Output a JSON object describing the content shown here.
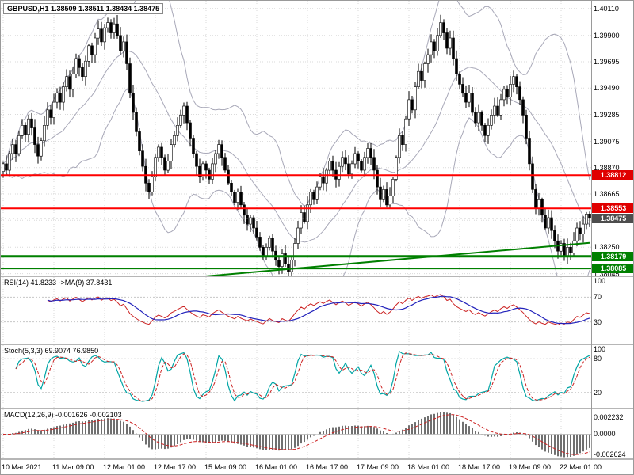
{
  "header": {
    "symbol": "GBPUSD,H1",
    "ohlc": "1.38509 1.38511 1.38434 1.38475"
  },
  "main_chart": {
    "price_max": 1.4017,
    "price_min": 1.3803,
    "y_axis_labels": [
      "1.40110",
      "1.39900",
      "1.39695",
      "1.39490",
      "1.39285",
      "1.39075",
      "1.38870",
      "1.38665",
      "1.38250",
      "1.38045"
    ],
    "grid_extra_levels": [
      1.3846
    ],
    "lines": [
      {
        "price": 1.38812,
        "color": "#FF0000",
        "width": 2
      },
      {
        "price": 1.38553,
        "color": "#FF0000",
        "width": 2
      },
      {
        "price": 1.38179,
        "color": "#008000",
        "width": 3
      },
      {
        "price": 1.38085,
        "color": "#008000",
        "width": 2
      }
    ],
    "trendline": {
      "bar1": 62,
      "price1": 1.3802,
      "bar2": 185,
      "price2": 1.38285,
      "color": "#008000"
    },
    "current_price": {
      "price": 1.38475
    },
    "price_badges": [
      {
        "text": "1.38812",
        "price": 1.38812,
        "bg": "#E00000"
      },
      {
        "text": "1.38553",
        "price": 1.38553,
        "bg": "#E00000"
      },
      {
        "text": "1.38475",
        "price": 1.38475,
        "bg": "#4D4D4D"
      },
      {
        "text": "1.38179",
        "price": 1.38179,
        "bg": "#008000"
      },
      {
        "text": "1.38085",
        "price": 1.38085,
        "bg": "#008000"
      }
    ]
  },
  "rsi_panel": {
    "label": "RSI(14) 41.8233 ->MA(9) 37.8431",
    "axis_labels": [
      "100",
      "70",
      "30"
    ],
    "levels": [
      70,
      30
    ],
    "line_color": "#CC2222",
    "ma_color": "#2222BB"
  },
  "stoch_panel": {
    "label": "Stoch(5,3,3) 69.9074 76.9850",
    "axis_labels": [
      "100",
      "80",
      "20"
    ],
    "levels": [
      80,
      20
    ],
    "k_color": "#00A5A5",
    "d_color": "#CC2222"
  },
  "macd_panel": {
    "label": "MACD(12,26,9) -0.001626 -0.002103",
    "axis_labels": [
      "0.002232",
      "0.0000",
      "-0.002624"
    ],
    "vmax": 0.00325,
    "vmin": -0.00315,
    "hist_color": "#606060",
    "signal_color": "#CC2222"
  },
  "x_axis": {
    "bars_per_label": 16,
    "labels": [
      "10 Mar 2021",
      "11 Mar 09:00",
      "12 Mar 01:00",
      "12 Mar 17:00",
      "15 Mar 09:00",
      "16 Mar 01:00",
      "16 Mar 17:00",
      "17 Mar 09:00",
      "18 Mar 01:00",
      "18 Mar 17:00",
      "19 Mar 09:00",
      "22 Mar 01:00"
    ],
    "start_label": "10 Mar 2021",
    "end_label": "22 Mar 01:00"
  },
  "chart_data": {
    "type": "candlestick",
    "symbol": "GBPUSD",
    "timeframe": "H1",
    "title": "GBPUSD,H1",
    "ohlc_display": {
      "open": "1.38509",
      "high": "1.38511",
      "low": "1.38434",
      "close": "1.38475"
    },
    "ylim": [
      1.3803,
      1.4017
    ],
    "overlays": [
      "Bollinger Bands"
    ],
    "bollinger": {
      "period": 20,
      "deviation": 2
    },
    "colors": {
      "bull_fill": "#FFFFFF",
      "bear_fill": "#000000",
      "outline": "#000000"
    },
    "closes": [
      1.389,
      1.3885,
      1.3898,
      1.3905,
      1.3898,
      1.3912,
      1.392,
      1.3913,
      1.3925,
      1.3918,
      1.3905,
      1.3896,
      1.3908,
      1.392,
      1.3932,
      1.3926,
      1.3938,
      1.3945,
      1.3938,
      1.395,
      1.3958,
      1.3948,
      1.396,
      1.3972,
      1.3965,
      1.3958,
      1.397,
      1.3982,
      1.3975,
      1.3988,
      1.3995,
      1.3985,
      1.3996,
      1.4,
      1.3992,
      1.3999,
      1.399,
      1.3978,
      1.3985,
      1.3968,
      1.3945,
      1.393,
      1.3915,
      1.39,
      1.3888,
      1.3875,
      1.3868,
      1.388,
      1.3895,
      1.3903,
      1.3895,
      1.3885,
      1.3892,
      1.3905,
      1.3912,
      1.392,
      1.3928,
      1.3935,
      1.3922,
      1.391,
      1.3898,
      1.3888,
      1.388,
      1.389,
      1.3885,
      1.3878,
      1.389,
      1.3898,
      1.3905,
      1.3895,
      1.3885,
      1.3875,
      1.3868,
      1.386,
      1.3868,
      1.3858,
      1.385,
      1.3843,
      1.3848,
      1.384,
      1.3833,
      1.3825,
      1.3818,
      1.3825,
      1.3832,
      1.3822,
      1.3815,
      1.381,
      1.382,
      1.3812,
      1.3806,
      1.3815,
      1.3828,
      1.384,
      1.3852,
      1.3845,
      1.3858,
      1.3868,
      1.3862,
      1.3872,
      1.388,
      1.3875,
      1.3885,
      1.3892,
      1.3885,
      1.3878,
      1.3888,
      1.3895,
      1.389,
      1.3882,
      1.389,
      1.3898,
      1.3892,
      1.3885,
      1.3895,
      1.3902,
      1.3895,
      1.3885,
      1.3872,
      1.3862,
      1.387,
      1.3858,
      1.3865,
      1.3878,
      1.3895,
      1.3912,
      1.3905,
      1.3925,
      1.394,
      1.3932,
      1.395,
      1.3962,
      1.3955,
      1.3968,
      1.3975,
      1.3985,
      1.3978,
      1.399,
      1.4,
      1.3992,
      1.398,
      1.3988,
      1.3972,
      1.396,
      1.3952,
      1.3945,
      1.3938,
      1.3945,
      1.393,
      1.3922,
      1.393,
      1.392,
      1.3912,
      1.392,
      1.3928,
      1.3935,
      1.3928,
      1.394,
      1.3948,
      1.3942,
      1.3952,
      1.3958,
      1.395,
      1.394,
      1.3928,
      1.391,
      1.389,
      1.387,
      1.3855,
      1.3862,
      1.385,
      1.384,
      1.3848,
      1.3838,
      1.383,
      1.3822,
      1.3828,
      1.38185,
      1.3825,
      1.38205,
      1.383,
      1.384,
      1.38355,
      1.3843,
      1.38509,
      1.38475
    ]
  }
}
